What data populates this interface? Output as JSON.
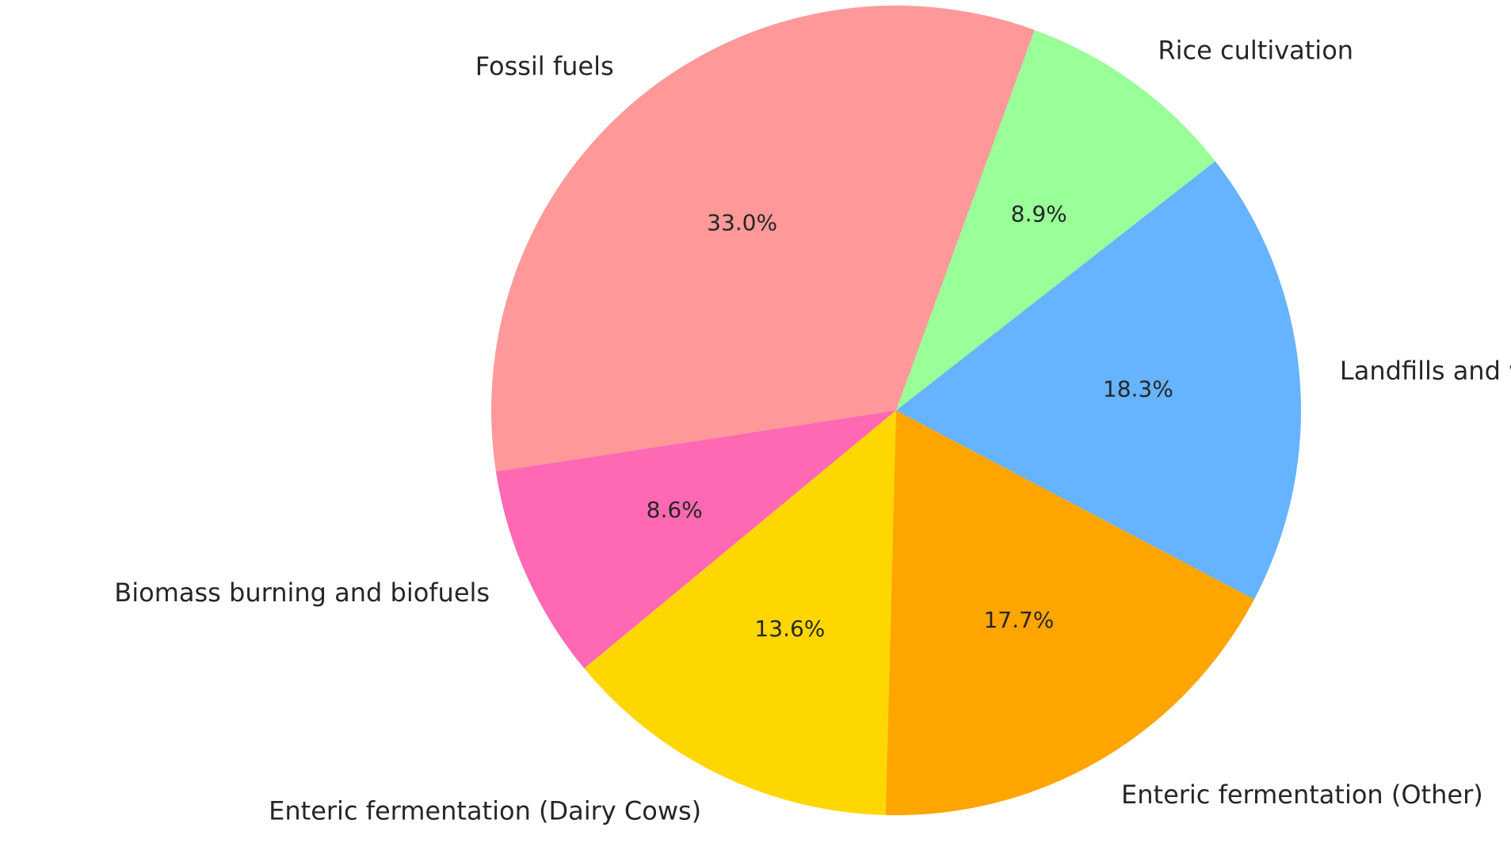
{
  "chart_data": {
    "type": "pie",
    "start_angle_deg": 70,
    "direction": "counterclockwise",
    "slices": [
      {
        "label": "Fossil fuels",
        "value": 33.0,
        "pct_label": "33.0%",
        "color": "#ff9999"
      },
      {
        "label": "Biomass burning and biofuels",
        "value": 8.6,
        "pct_label": "8.6%",
        "color": "#ff69b4"
      },
      {
        "label": "Enteric fermentation (Dairy Cows)",
        "value": 13.6,
        "pct_label": "13.6%",
        "color": "#ffd700"
      },
      {
        "label": "Enteric fermentation (Other)",
        "value": 17.7,
        "pct_label": "17.7%",
        "color": "#ffa500"
      },
      {
        "label": "Landfills and waste",
        "value": 18.3,
        "pct_label": "18.3%",
        "color": "#66b3ff"
      },
      {
        "label": "Rice cultivation",
        "value": 8.9,
        "pct_label": "8.9%",
        "color": "#99ff99"
      }
    ]
  }
}
